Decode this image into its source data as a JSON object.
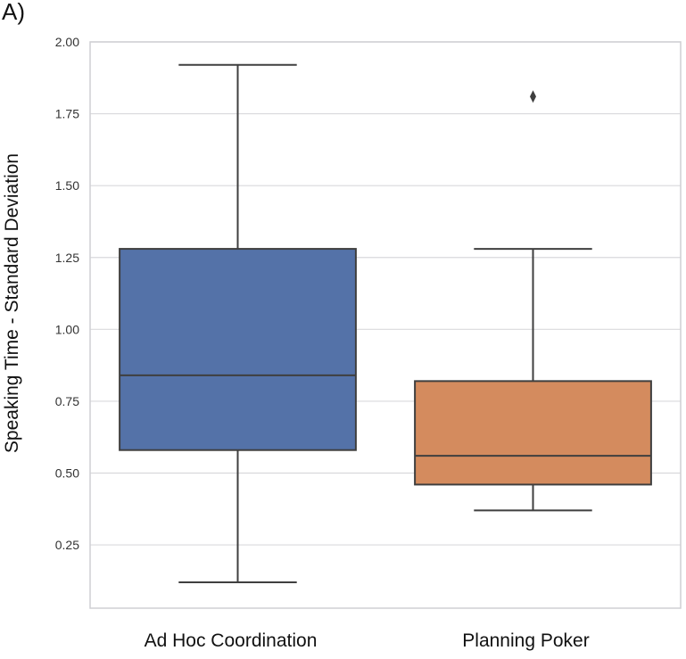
{
  "chart_data": {
    "type": "box",
    "panel_label": "A)",
    "title": "",
    "xlabel": "",
    "ylabel": "Speaking Time - Standard Deviation",
    "ylim": [
      0.03,
      2.0
    ],
    "yticks": [
      "0.25",
      "0.50",
      "0.75",
      "1.00",
      "1.25",
      "1.50",
      "1.75",
      "2.00"
    ],
    "grid": true,
    "categories": [
      "Ad Hoc Coordination",
      "Planning Poker"
    ],
    "boxes": [
      {
        "category": "Ad Hoc Coordination",
        "whisker_low": 0.12,
        "q1": 0.58,
        "median": 0.84,
        "q3": 1.28,
        "whisker_high": 1.92,
        "outliers": [],
        "color": "#5472a8"
      },
      {
        "category": "Planning Poker",
        "whisker_low": 0.37,
        "q1": 0.46,
        "median": 0.56,
        "q3": 0.82,
        "whisker_high": 1.28,
        "outliers": [
          1.81
        ],
        "color": "#d48b5e"
      }
    ],
    "line_color": "#3f3f3f"
  }
}
